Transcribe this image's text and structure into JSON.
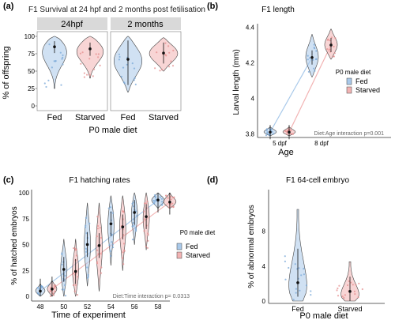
{
  "colors": {
    "fed": "#a9c9ea",
    "starved": "#f2b3b3",
    "strip": "#d9d9d9",
    "axis": "#333333",
    "text": "#222222"
  },
  "chart_data": [
    {
      "panel": "(a)",
      "type": "violin",
      "title": "F1 Survival at 24 hpf and 2 months post fetilisation",
      "facets": [
        "24hpf",
        "2 months"
      ],
      "categories": [
        "Fed",
        "Starved"
      ],
      "xlabel": "P0 male diet",
      "ylabel": "% of offspring",
      "ylim": [
        0,
        100
      ],
      "yticks": [
        0,
        25,
        50,
        75,
        100
      ],
      "series": [
        {
          "facet": "24hpf",
          "group": "Fed",
          "min": 25,
          "max": 100,
          "median": 85,
          "ci": [
            76,
            93
          ]
        },
        {
          "facet": "24hpf",
          "group": "Starved",
          "min": 40,
          "max": 100,
          "median": 82,
          "ci": [
            72,
            91
          ]
        },
        {
          "facet": "2 months",
          "group": "Fed",
          "min": 20,
          "max": 100,
          "median": 67,
          "ci": [
            30,
            94
          ]
        },
        {
          "facet": "2 months",
          "group": "Starved",
          "min": 50,
          "max": 98,
          "median": 76,
          "ci": [
            61,
            91
          ]
        }
      ]
    },
    {
      "panel": "(b)",
      "type": "violin",
      "title": "F1 length",
      "categories": [
        "5 dpf",
        "8 dpf"
      ],
      "xlabel": "Age",
      "ylabel": "Larval length (mm)",
      "ylim": [
        3.78,
        4.42
      ],
      "yticks": [
        3.8,
        4.0,
        4.2,
        4.4
      ],
      "legend_title": "P0 male diet",
      "legend": [
        "Fed",
        "Starved"
      ],
      "annotation": "Diet:Age interaction  p=0.001",
      "series": [
        {
          "name": "Fed",
          "values": [
            3.81,
            4.23
          ],
          "min": [
            3.79,
            4.12
          ],
          "max": [
            3.84,
            4.36
          ]
        },
        {
          "name": "Starved",
          "values": [
            3.81,
            4.3
          ],
          "min": [
            3.79,
            4.22
          ],
          "max": [
            3.84,
            4.39
          ]
        }
      ]
    },
    {
      "panel": "(c)",
      "type": "violin",
      "title": "F1 hatching rates",
      "x": [
        48,
        49,
        50,
        51,
        52,
        53,
        54,
        55,
        56,
        57,
        58
      ],
      "xticks": [
        48,
        50,
        52,
        54,
        56,
        58
      ],
      "xlabel": "Time of experiment",
      "ylabel": "% of hatched embryos",
      "ylim": [
        0,
        100
      ],
      "yticks": [
        0,
        25,
        50,
        75,
        100
      ],
      "legend_title": "P0 male diet",
      "legend": [
        "Fed",
        "Starved"
      ],
      "annotation": "Diet:Time interaction  p= 0.0313",
      "series": [
        {
          "name": "Fed",
          "x": [
            48,
            50,
            52,
            54,
            56,
            58
          ],
          "values": [
            5,
            26,
            50,
            70,
            81,
            93
          ],
          "min": [
            0,
            0,
            10,
            30,
            50,
            85
          ],
          "max": [
            12,
            55,
            90,
            97,
            100,
            100
          ]
        },
        {
          "name": "Starved",
          "x": [
            49,
            51,
            53,
            55,
            57,
            59
          ],
          "values": [
            7,
            24,
            49,
            67,
            77,
            91
          ],
          "min": [
            0,
            0,
            5,
            25,
            45,
            85
          ],
          "max": [
            15,
            55,
            90,
            97,
            100,
            100
          ]
        }
      ]
    },
    {
      "panel": "(d)",
      "type": "violin",
      "title": "F1 64-cell embryo",
      "categories": [
        "Fed",
        "Starved"
      ],
      "xlabel": "P0 male diet",
      "ylabel": "% of abnormal embryos",
      "ylim": [
        0,
        10
      ],
      "yticks": [
        0,
        4,
        8
      ],
      "series": [
        {
          "group": "Fed",
          "min": 0,
          "max": 10.5,
          "median": 2.1,
          "ci": [
            0.5,
            6
          ]
        },
        {
          "group": "Starved",
          "min": 0,
          "max": 4.5,
          "median": 1.1,
          "ci": [
            0,
            2.8
          ]
        }
      ]
    }
  ]
}
